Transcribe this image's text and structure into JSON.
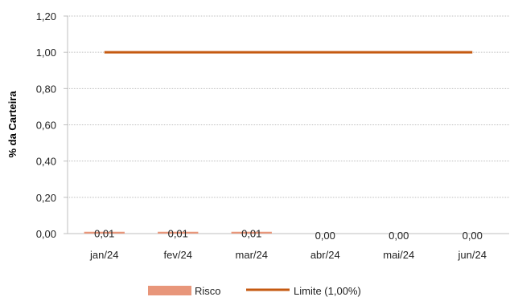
{
  "chart_data": {
    "type": "bar",
    "categories": [
      "jan/24",
      "fev/24",
      "mar/24",
      "abr/24",
      "mai/24",
      "jun/24"
    ],
    "series": [
      {
        "name": "Risco",
        "kind": "bar",
        "values": [
          0.01,
          0.01,
          0.01,
          0.0,
          0.0,
          0.0
        ],
        "labels": [
          "0,01",
          "0,01",
          "0,01",
          "0,00",
          "0,00",
          "0,00"
        ],
        "color": "#E8967A"
      },
      {
        "name": "Limite (1,00%)",
        "kind": "line",
        "values": [
          1.0,
          1.0,
          1.0,
          1.0,
          1.0,
          1.0
        ],
        "color": "#C55A11"
      }
    ],
    "ylabel": "% da Carteira",
    "ylim": [
      0,
      1.2
    ],
    "yticks": [
      "0,00",
      "0,20",
      "0,40",
      "0,60",
      "0,80",
      "1,00",
      "1,20"
    ],
    "grid": true,
    "legend_position": "bottom"
  }
}
